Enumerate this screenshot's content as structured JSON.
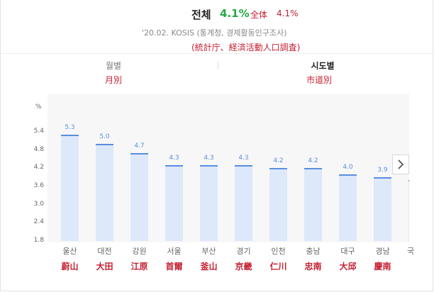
{
  "header": {
    "title_ko": "전체",
    "title_value": "4.1%",
    "title_zh": "全体",
    "title_value_zh": "4.1%",
    "source": "'20.02. KOSIS (통계청, 경제활동인구조사)",
    "source_zh": "(統計庁、経済活動人口調査)"
  },
  "tabs": [
    {
      "label": "월별",
      "label_zh": "月別"
    },
    {
      "label": "시도별",
      "label_zh": "市道別"
    }
  ],
  "chart_data": {
    "type": "bar",
    "ylabel": "%",
    "ylim": [
      1.8,
      6.6
    ],
    "yticks": [
      "1.8",
      "2.4",
      "3.0",
      "3.6",
      "4.2",
      "4.8",
      "5.4"
    ],
    "categories": [
      "울산",
      "대전",
      "강원",
      "서울",
      "부산",
      "경기",
      "인천",
      "충남",
      "대구",
      "경남"
    ],
    "categories_zh": [
      "蔚山",
      "大田",
      "江原",
      "首爾",
      "釜山",
      "京畿",
      "仁川",
      "忠南",
      "大邱",
      "慶南"
    ],
    "values": [
      5.3,
      5.0,
      4.7,
      4.3,
      4.3,
      4.3,
      4.2,
      4.2,
      4.0,
      3.9
    ],
    "value_labels": [
      "5.3",
      "5.0",
      "4.7",
      "4.3",
      "4.3",
      "4.3",
      "4.2",
      "4.2",
      "4.0",
      "3.9"
    ],
    "partial_next_value": 3.8,
    "partial_next_category": "국",
    "colors": {
      "bar_fill": "#dde8fb",
      "bar_line": "#5a8ee0"
    }
  },
  "nav": {
    "next_icon": "chevron-right-icon"
  }
}
